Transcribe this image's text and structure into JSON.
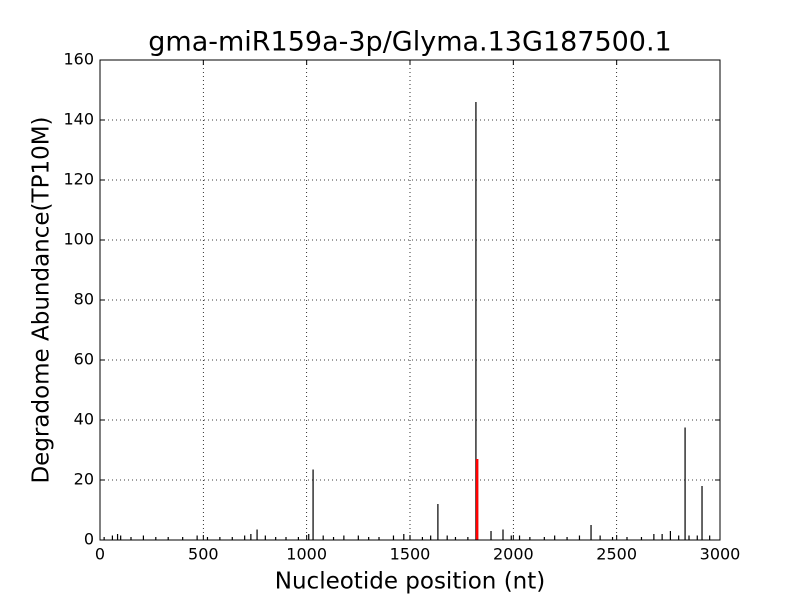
{
  "chart_data": {
    "type": "bar",
    "title": "gma-miR159a-3p/Glyma.13G187500.1",
    "x_label": "Nucleotide position (nt)",
    "y_label": "Degradome Abundance(TP10M)",
    "xlim": [
      0,
      3000
    ],
    "xticks": [
      0,
      500,
      1000,
      1500,
      2000,
      2500,
      3000
    ],
    "ylim": [
      0,
      160
    ],
    "yticks": [
      0,
      20,
      40,
      60,
      80,
      100,
      120,
      140,
      160
    ],
    "grid": true,
    "series": [
      {
        "color": "#000000",
        "x": [
          20,
          60,
          85,
          100,
          150,
          210,
          270,
          330,
          400,
          470,
          520,
          580,
          640,
          700,
          730,
          760,
          800,
          850,
          900,
          960,
          1010,
          1031,
          1080,
          1130,
          1180,
          1250,
          1300,
          1350,
          1420,
          1470,
          1500,
          1560,
          1600,
          1635,
          1680,
          1720,
          1780,
          1819,
          1892,
          1950,
          1990,
          2030,
          2080,
          2150,
          2200,
          2260,
          2320,
          2376,
          2420,
          2480,
          2550,
          2620,
          2680,
          2720,
          2760,
          2800,
          2831,
          2850,
          2890,
          2913,
          2950
        ],
        "values": [
          1,
          1.5,
          2,
          1.5,
          1,
          1.5,
          1,
          1,
          1,
          1.5,
          1,
          1,
          1,
          1.5,
          2,
          3.5,
          1.5,
          1,
          1,
          1,
          2,
          23.5,
          1.5,
          1,
          1.5,
          1.5,
          1,
          1,
          1.5,
          2,
          1.5,
          1,
          1.5,
          12,
          1.5,
          1,
          1,
          146,
          3,
          3.5,
          1.5,
          1.5,
          1,
          1,
          1.5,
          1,
          1.5,
          5,
          1.5,
          1,
          1,
          1,
          2,
          2,
          3,
          1.5,
          37.5,
          1.5,
          1.5,
          18,
          1.5
        ]
      },
      {
        "color": "#ff0000",
        "x": [
          1825
        ],
        "values": [
          27
        ]
      }
    ]
  }
}
